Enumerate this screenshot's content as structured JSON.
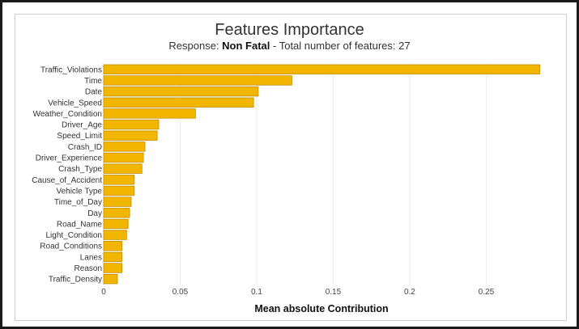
{
  "title": "Features Importance",
  "subtitle": {
    "prefix": "Response: ",
    "response": "Non Fatal",
    "suffix": " - Total number of features: 27"
  },
  "colors": {
    "bar": "#f2b600",
    "bar_stroke": "#c48f00",
    "grid": "#ececec"
  },
  "chart_data": {
    "type": "bar",
    "orientation": "horizontal",
    "title": "Features Importance",
    "xlabel": "Mean absolute Contribution",
    "ylabel": "",
    "xlim": [
      0,
      0.29
    ],
    "xticks": [
      0,
      0.05,
      0.1,
      0.15,
      0.2,
      0.25
    ],
    "xtick_labels": [
      "0",
      "0.05",
      "0.1",
      "0.15",
      "0.2",
      "0.25"
    ],
    "grid": "vertical",
    "categories": [
      "Traffic_Violations",
      "Time",
      "Date",
      "Vehicle_Speed",
      "Weather_Condition",
      "Driver_Age",
      "Speed_Limit",
      "Crash_ID",
      "Driver_Experience",
      "Crash_Type",
      "Cause_of_Accident",
      "Vehicle Type",
      "Time_of_Day",
      "Day",
      "Road_Name",
      "Light_Condition",
      "Road_Conditions",
      "Lanes",
      "Reason",
      "Traffic_Density"
    ],
    "values": [
      0.285,
      0.123,
      0.101,
      0.098,
      0.06,
      0.036,
      0.035,
      0.027,
      0.026,
      0.025,
      0.02,
      0.02,
      0.018,
      0.017,
      0.016,
      0.015,
      0.012,
      0.012,
      0.012,
      0.009
    ]
  }
}
